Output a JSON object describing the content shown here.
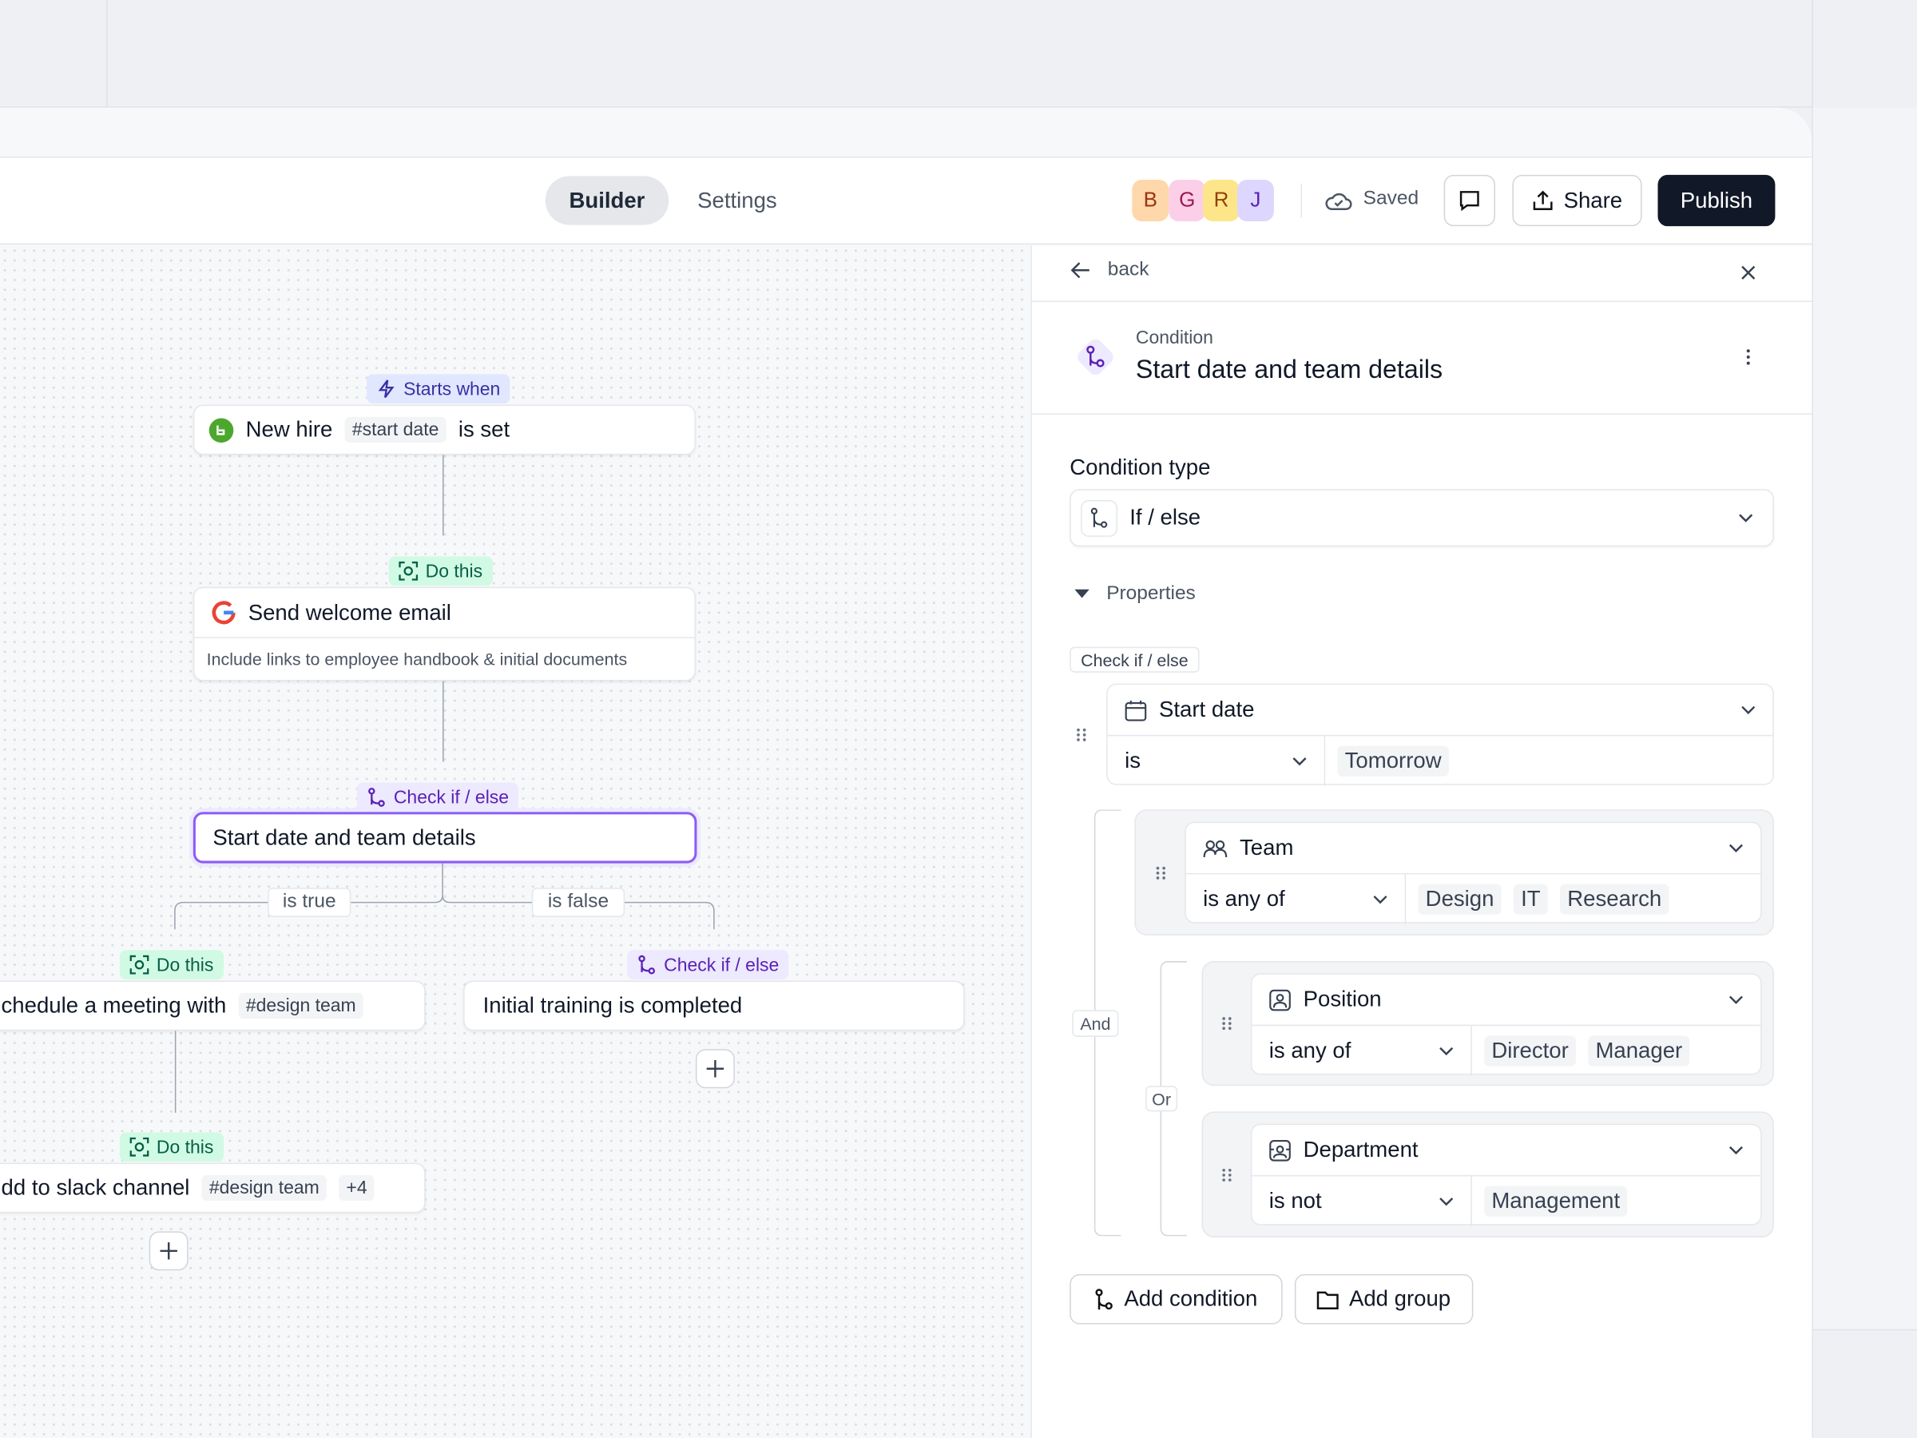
{
  "header": {
    "tabs": [
      "Builder",
      "Settings"
    ],
    "avatars": [
      "B",
      "G",
      "R",
      "J"
    ],
    "status": "Saved",
    "share": "Share",
    "publish": "Publish"
  },
  "canvas": {
    "nodes": [
      {
        "tag": "Starts when",
        "title": "New hire",
        "chips": [
          "#start date"
        ],
        "suffix": "is set"
      },
      {
        "tag": "Do this",
        "title": "Send welcome email",
        "description": "Include links to employee handbook & initial documents"
      },
      {
        "tag": "Check if / else",
        "title": "Start date and team details"
      },
      {
        "tag": "Do this",
        "title": "chedule a meeting with",
        "chips": [
          "#design team"
        ]
      },
      {
        "tag": "Check if / else",
        "title": "Initial training is completed"
      },
      {
        "tag": "Do this",
        "title": "dd to slack channel",
        "chips": [
          "#design team",
          "+4"
        ]
      }
    ],
    "branches": [
      "is true",
      "is false"
    ]
  },
  "panel": {
    "back": "back",
    "kicker": "Condition",
    "title": "Start date and team details",
    "condition_type_label": "Condition type",
    "condition_type": "If / else",
    "properties": "Properties",
    "check_tag": "Check if / else",
    "conditions": [
      {
        "field": "Start date",
        "operator": "is",
        "values": [
          "Tomorrow"
        ]
      },
      {
        "field": "Team",
        "operator": "is any of",
        "values": [
          "Design",
          "IT",
          "Research"
        ]
      },
      {
        "field": "Position",
        "operator": "is any of",
        "values": [
          "Director",
          "Manager"
        ]
      },
      {
        "field": "Department",
        "operator": "is not",
        "values": [
          "Management"
        ]
      }
    ],
    "and": "And",
    "or": "Or",
    "actions": [
      "Add condition",
      "Add group"
    ]
  }
}
